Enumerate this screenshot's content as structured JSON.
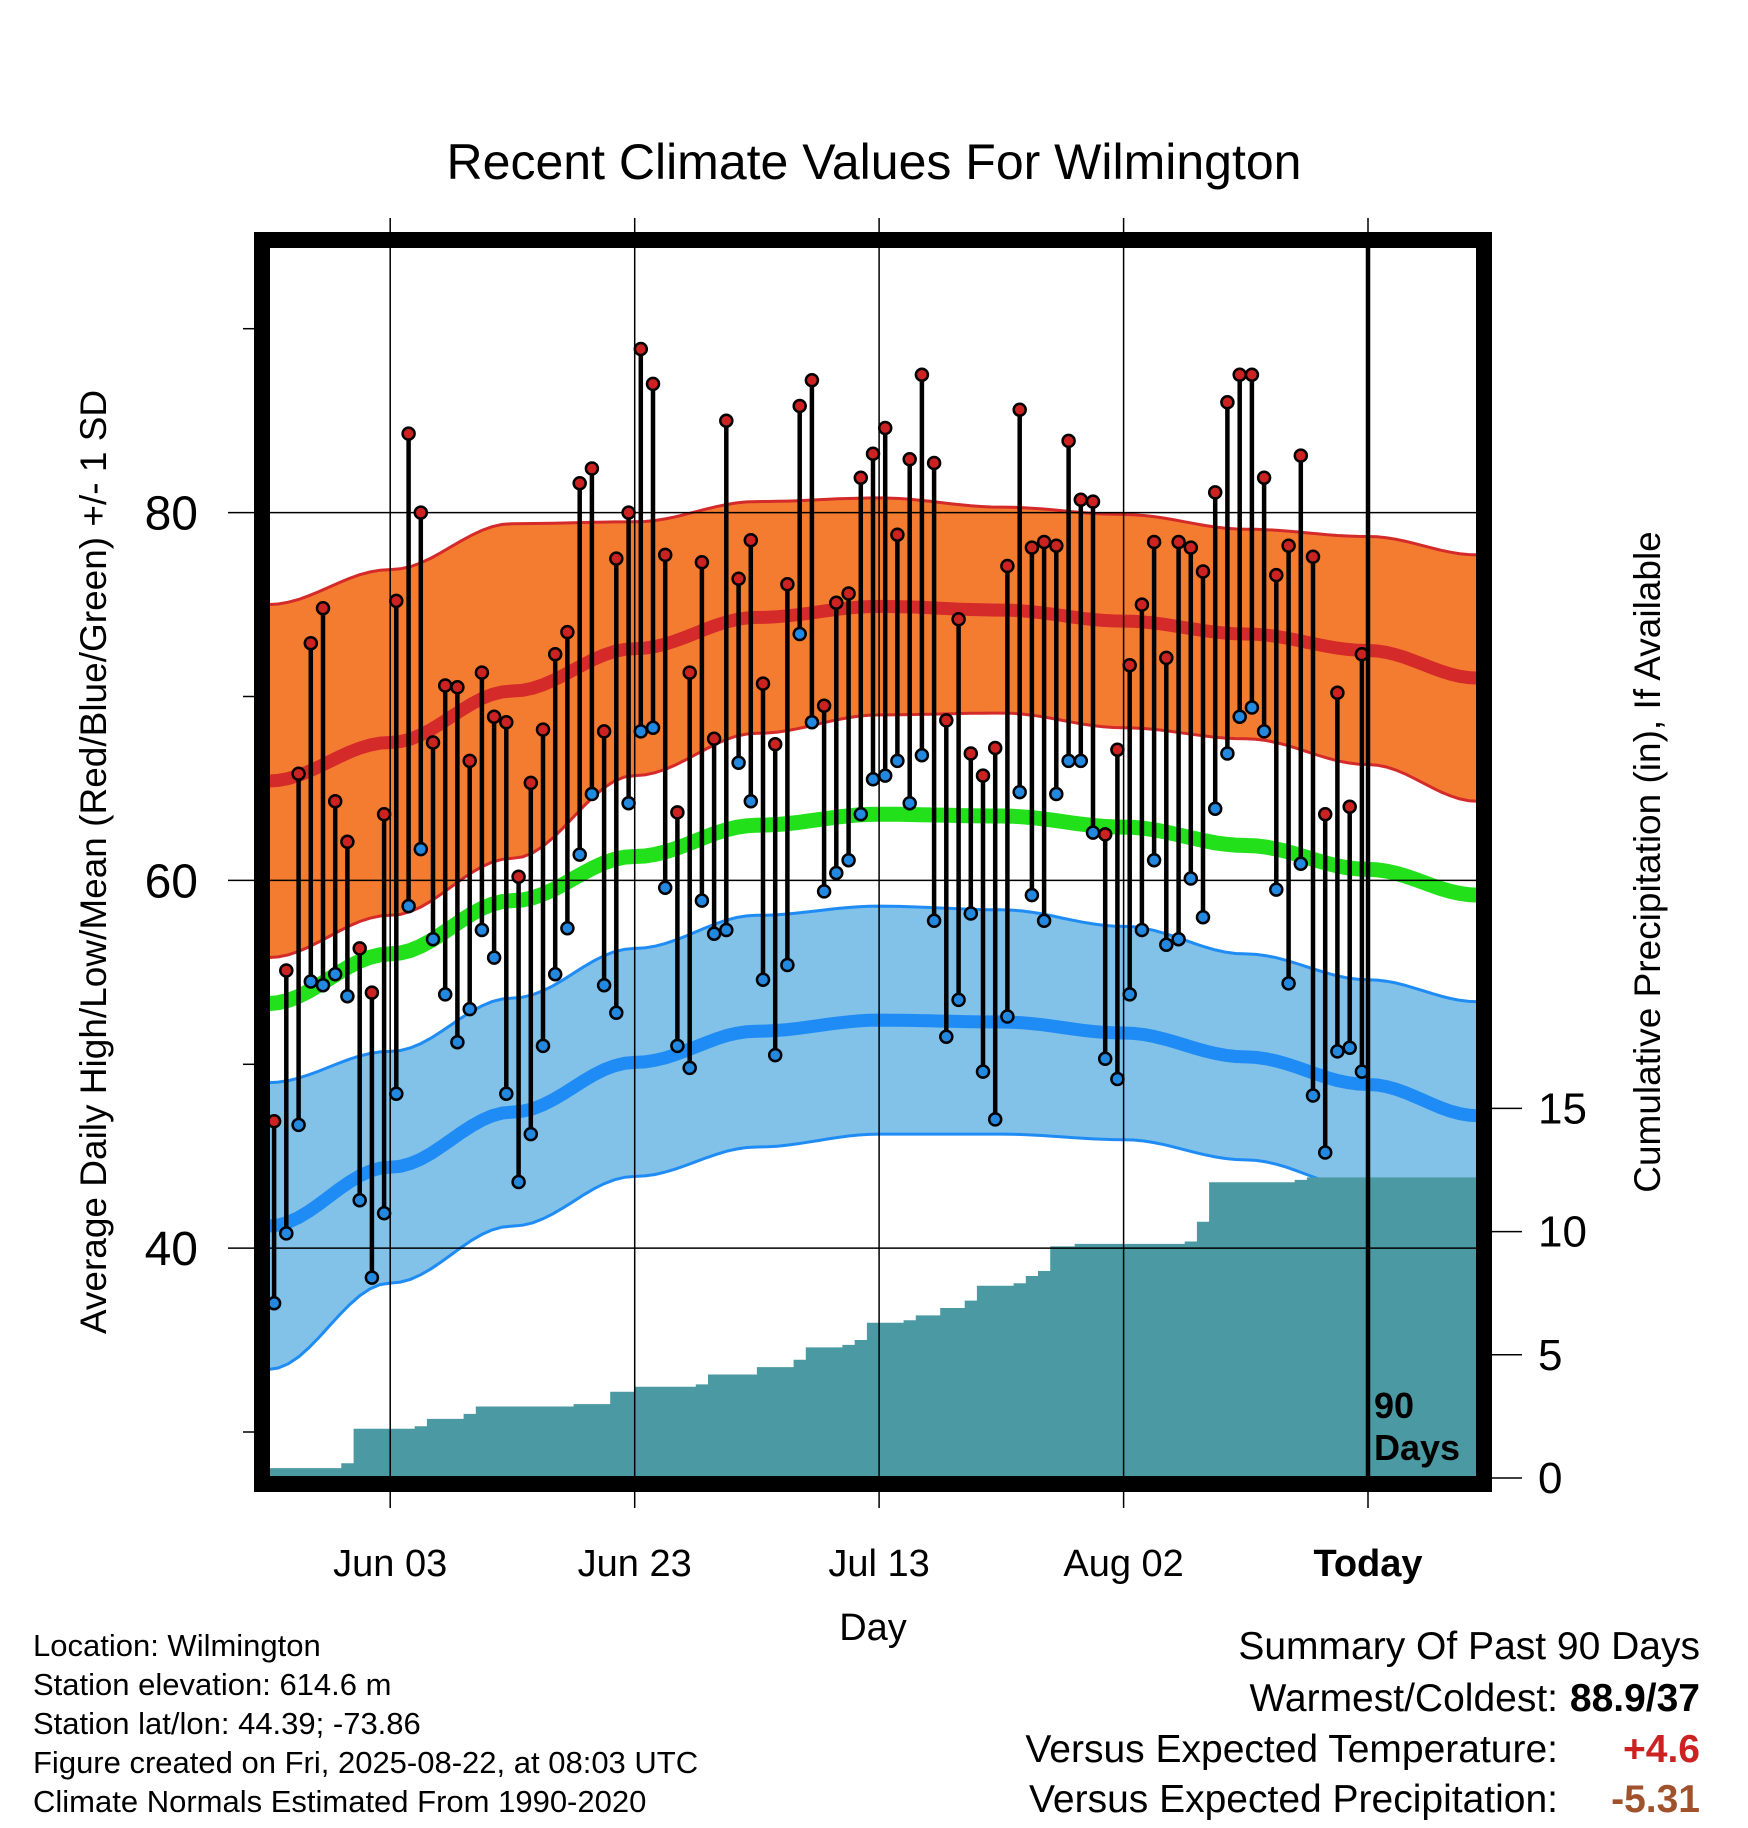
{
  "title": "Recent Climate Values For Wilmington",
  "info": {
    "location": "Location: Wilmington",
    "elevation": "Station elevation: 614.6 m",
    "latlon": "Station lat/lon: 44.39; -73.86",
    "created": "Figure created on Fri, 2025-08-22, at 08:03 UTC",
    "normals": "Climate Normals Estimated From 1990-2020"
  },
  "summary": {
    "heading": "Summary Of Past 90 Days",
    "warm_cold_label": "Warmest/Coldest:",
    "warm_cold_value": "88.9/37",
    "temp_label": "Versus Expected Temperature:",
    "temp_value": "+4.6",
    "precip_label": "Versus Expected Precipitation:",
    "precip_value": "-5.31"
  },
  "colors": {
    "high_band": "#f47c30",
    "high_line": "#d42a2a",
    "low_band": "#82c1e8",
    "low_line": "#1f8cf5",
    "mean_line": "#22e01a",
    "precip": "#4b9aa3",
    "high_dot": "#cc2222",
    "low_dot": "#2288e0"
  },
  "chart_data": {
    "type": "line",
    "xlabel": "Day",
    "ylabel": "Average Daily High/Low/Mean (Red/Blue/Green) +/- 1 SD",
    "y2label": "Cumulative Precipitation (in), If Available",
    "annotation": "90\nDays",
    "x_ticks": [
      {
        "day": 10,
        "label": "Jun 03"
      },
      {
        "day": 30,
        "label": "Jun 23"
      },
      {
        "day": 50,
        "label": "Jul 13"
      },
      {
        "day": 70,
        "label": "Aug 02"
      },
      {
        "day": 90,
        "label": "Today"
      }
    ],
    "xlim": [
      0,
      99
    ],
    "y_ticks": [
      40,
      60,
      80
    ],
    "ylim": [
      27.5,
      94.5
    ],
    "y2_ticks": [
      0,
      5,
      10,
      15
    ],
    "y2lim": [
      0,
      50
    ],
    "normal_high": [
      {
        "day": 0,
        "mean": 65.4,
        "sd": 9.6
      },
      {
        "day": 10,
        "mean": 67.5,
        "sd": 9.4
      },
      {
        "day": 20,
        "mean": 70.3,
        "sd": 9.1
      },
      {
        "day": 30,
        "mean": 72.6,
        "sd": 6.9
      },
      {
        "day": 40,
        "mean": 74.3,
        "sd": 6.3
      },
      {
        "day": 50,
        "mean": 74.9,
        "sd": 5.9
      },
      {
        "day": 60,
        "mean": 74.7,
        "sd": 5.6
      },
      {
        "day": 70,
        "mean": 74.1,
        "sd": 5.8
      },
      {
        "day": 80,
        "mean": 73.4,
        "sd": 5.7
      },
      {
        "day": 90,
        "mean": 72.5,
        "sd": 6.2
      },
      {
        "day": 99,
        "mean": 71.0,
        "sd": 6.7
      }
    ],
    "normal_low": [
      {
        "day": 0,
        "mean": 41.2,
        "sd": 7.8
      },
      {
        "day": 10,
        "mean": 44.4,
        "sd": 6.3
      },
      {
        "day": 20,
        "mean": 47.4,
        "sd": 6.2
      },
      {
        "day": 30,
        "mean": 50.1,
        "sd": 6.2
      },
      {
        "day": 40,
        "mean": 51.8,
        "sd": 6.3
      },
      {
        "day": 50,
        "mean": 52.4,
        "sd": 6.2
      },
      {
        "day": 60,
        "mean": 52.3,
        "sd": 6.1
      },
      {
        "day": 70,
        "mean": 51.7,
        "sd": 5.8
      },
      {
        "day": 80,
        "mean": 50.4,
        "sd": 5.6
      },
      {
        "day": 90,
        "mean": 48.9,
        "sd": 5.7
      },
      {
        "day": 99,
        "mean": 47.2,
        "sd": 6.2
      }
    ],
    "normal_mean": [
      {
        "day": 0,
        "value": 53.3
      },
      {
        "day": 10,
        "value": 56.0
      },
      {
        "day": 20,
        "value": 58.9
      },
      {
        "day": 30,
        "value": 61.3
      },
      {
        "day": 40,
        "value": 63.0
      },
      {
        "day": 50,
        "value": 63.6
      },
      {
        "day": 60,
        "value": 63.5
      },
      {
        "day": 70,
        "value": 62.9
      },
      {
        "day": 80,
        "value": 61.9
      },
      {
        "day": 90,
        "value": 60.6
      },
      {
        "day": 99,
        "value": 59.2
      }
    ],
    "daily_high": [
      46.9,
      55.1,
      65.8,
      72.9,
      74.8,
      64.3,
      62.1,
      56.3,
      53.9,
      63.6,
      75.2,
      84.3,
      80.0,
      67.5,
      70.6,
      70.5,
      66.5,
      71.3,
      68.9,
      68.6,
      60.2,
      65.3,
      68.2,
      72.3,
      73.5,
      81.6,
      82.4,
      68.1,
      77.5,
      80.0,
      88.9,
      87.0,
      77.7,
      63.7,
      71.3,
      77.3,
      67.7,
      85.0,
      76.4,
      78.5,
      70.7,
      67.4,
      76.1,
      85.8,
      87.2,
      69.5,
      75.1,
      75.6,
      81.9,
      83.2,
      84.6,
      78.8,
      82.9,
      87.5,
      82.7,
      68.7,
      74.2,
      66.9,
      65.7,
      67.2,
      77.1,
      85.6,
      78.1,
      78.4,
      78.2,
      83.9,
      80.7,
      80.6,
      62.5,
      67.1,
      71.7,
      75.0,
      78.4,
      72.1,
      78.4,
      78.1,
      76.8,
      81.1,
      86.0,
      87.5,
      87.5,
      81.9,
      76.6,
      78.2,
      83.1,
      77.6,
      63.6,
      70.2,
      64.0,
      72.3
    ],
    "daily_low": [
      37.0,
      40.8,
      46.7,
      54.5,
      54.3,
      54.9,
      53.7,
      42.6,
      38.4,
      41.9,
      48.4,
      58.6,
      61.7,
      56.8,
      53.8,
      51.2,
      53.0,
      57.3,
      55.8,
      48.4,
      43.6,
      46.2,
      51.0,
      54.9,
      57.4,
      61.4,
      64.7,
      54.3,
      52.8,
      64.2,
      68.1,
      68.3,
      59.6,
      51.0,
      49.8,
      58.9,
      57.1,
      57.3,
      66.4,
      64.3,
      54.6,
      50.5,
      55.4,
      73.4,
      68.6,
      59.4,
      60.4,
      61.1,
      63.6,
      65.5,
      65.7,
      66.5,
      64.2,
      66.8,
      57.8,
      51.5,
      53.5,
      58.2,
      49.6,
      47.0,
      52.6,
      64.8,
      59.2,
      57.8,
      64.7,
      66.5,
      66.5,
      62.6,
      50.3,
      49.2,
      53.8,
      57.3,
      61.1,
      56.5,
      56.8,
      60.1,
      58.0,
      63.9,
      66.9,
      68.9,
      69.4,
      68.1,
      59.5,
      54.4,
      60.9,
      48.3,
      45.2,
      50.7,
      50.9,
      49.6
    ],
    "cumulative_precip": [
      {
        "day": 0,
        "value": 0.4
      },
      {
        "day": 6,
        "value": 0.6
      },
      {
        "day": 7,
        "value": 2.0
      },
      {
        "day": 12,
        "value": 2.1
      },
      {
        "day": 13,
        "value": 2.4
      },
      {
        "day": 16,
        "value": 2.6
      },
      {
        "day": 17,
        "value": 2.9
      },
      {
        "day": 25,
        "value": 3.0
      },
      {
        "day": 28,
        "value": 3.5
      },
      {
        "day": 30,
        "value": 3.7
      },
      {
        "day": 35,
        "value": 3.8
      },
      {
        "day": 36,
        "value": 4.2
      },
      {
        "day": 40,
        "value": 4.5
      },
      {
        "day": 43,
        "value": 4.8
      },
      {
        "day": 44,
        "value": 5.3
      },
      {
        "day": 47,
        "value": 5.4
      },
      {
        "day": 48,
        "value": 5.6
      },
      {
        "day": 49,
        "value": 6.3
      },
      {
        "day": 52,
        "value": 6.4
      },
      {
        "day": 53,
        "value": 6.6
      },
      {
        "day": 55,
        "value": 6.9
      },
      {
        "day": 57,
        "value": 7.2
      },
      {
        "day": 58,
        "value": 7.8
      },
      {
        "day": 61,
        "value": 7.9
      },
      {
        "day": 62,
        "value": 8.2
      },
      {
        "day": 63,
        "value": 8.4
      },
      {
        "day": 64,
        "value": 9.4
      },
      {
        "day": 66,
        "value": 9.5
      },
      {
        "day": 75,
        "value": 9.6
      },
      {
        "day": 76,
        "value": 10.4
      },
      {
        "day": 77,
        "value": 12.0
      },
      {
        "day": 84,
        "value": 12.1
      },
      {
        "day": 85,
        "value": 12.2
      },
      {
        "day": 99,
        "value": 12.2
      }
    ]
  }
}
